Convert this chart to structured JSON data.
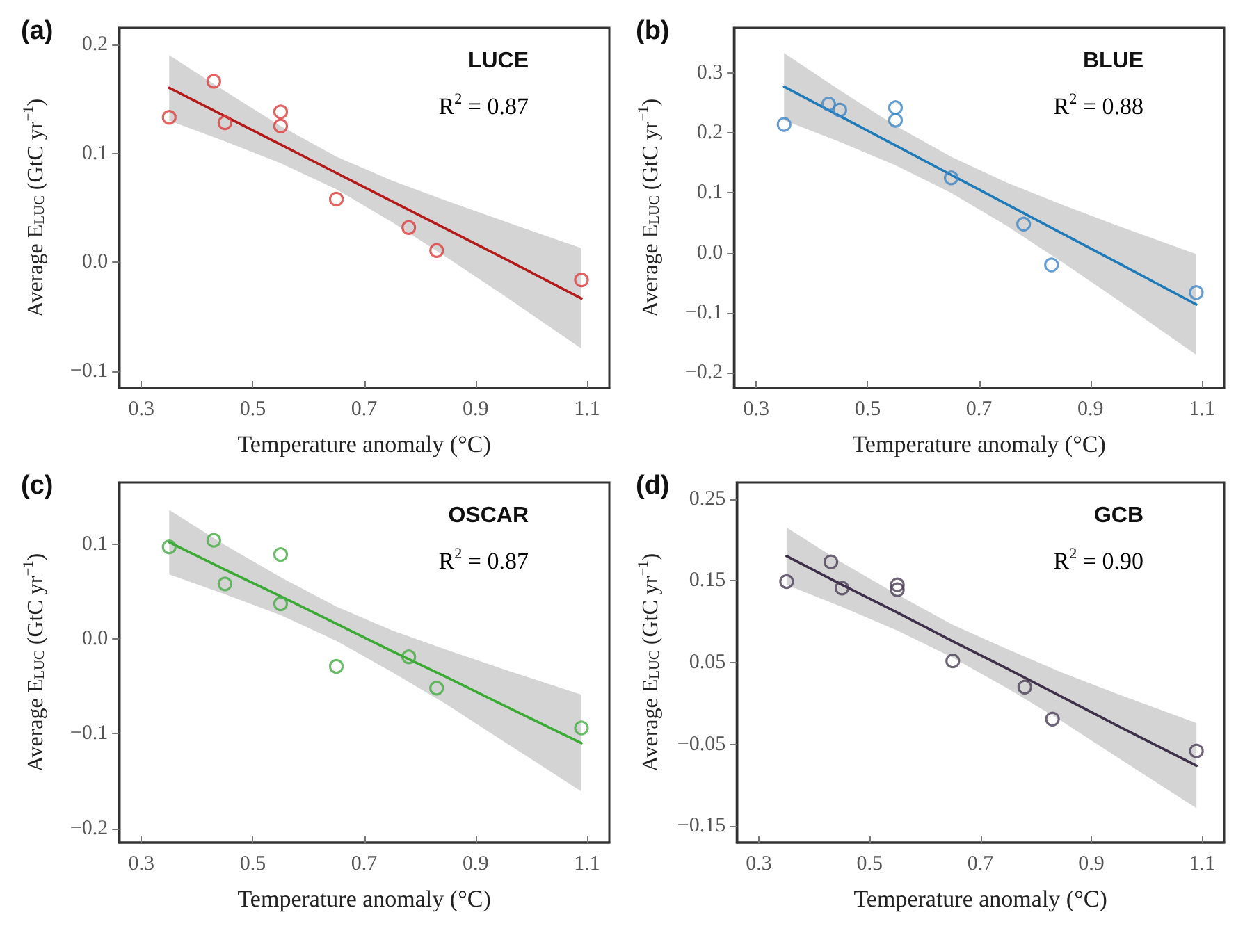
{
  "chart_data": [
    {
      "type": "scatter",
      "title": "(a)",
      "xlabel": "Temperature anomaly (°C)",
      "ylabel": "Average E$_{LUC}$ (GtC yr$^{−1}$)",
      "annotations": [
        "LUCE",
        "R$^{2}$ = 0.87"
      ],
      "xlim": [
        0.26,
        1.14
      ],
      "xticks": [
        0.3,
        0.5,
        0.7,
        0.9,
        1.1
      ],
      "ylim": [
        -0.115,
        0.215
      ],
      "yticks": [
        {
          "value": -0.1,
          "label": "−0.1"
        },
        {
          "value": 0,
          "label": "0.0"
        },
        0.1,
        0.2
      ],
      "grid": false,
      "marker": "circle",
      "series": [
        {
          "color": "#e03a3a",
          "x": [
            0.35,
            0.43,
            0.45,
            0.55,
            0.55,
            0.65,
            0.78,
            0.83,
            1.09
          ],
          "values": [
            0.133,
            0.166,
            0.128,
            0.138,
            0.125,
            0.058,
            0.032,
            0.011,
            -0.016
          ]
        },
        {
          "type": "line",
          "color": "#b31b1b",
          "marker": "none",
          "x": [
            0.35,
            0.45,
            0.55,
            0.65,
            0.75,
            0.85,
            0.95,
            1.09
          ],
          "values": [
            0.16,
            0.134,
            0.108,
            0.082,
            0.056,
            0.03,
            0.004,
            -0.033
          ],
          "lower": [
            0.13,
            0.111,
            0.091,
            0.067,
            0.037,
            0.004,
            -0.03,
            -0.079
          ],
          "upper": [
            0.19,
            0.157,
            0.125,
            0.097,
            0.075,
            0.056,
            0.038,
            0.013
          ]
        }
      ]
    },
    {
      "type": "scatter",
      "title": "(b)",
      "xlabel": "Temperature anomaly (°C)",
      "ylabel": "Average E$_{LUC}$ (GtC yr$^{−1}$)",
      "annotations": [
        "BLUE",
        "R$^{2}$ = 0.88"
      ],
      "xlim": [
        0.26,
        1.14
      ],
      "xticks": [
        0.3,
        0.5,
        0.7,
        0.9,
        1.1
      ],
      "ylim": [
        -0.225,
        0.375
      ],
      "yticks": [
        {
          "value": -0.2,
          "label": "−0.2"
        },
        {
          "value": -0.1,
          "label": "−0.1"
        },
        {
          "value": 0,
          "label": "0.0"
        },
        0.1,
        0.2,
        0.3
      ],
      "grid": false,
      "marker": "circle",
      "series": [
        {
          "color": "#3d84c4",
          "x": [
            0.35,
            0.43,
            0.45,
            0.55,
            0.55,
            0.65,
            0.78,
            0.83,
            1.09
          ],
          "values": [
            0.214,
            0.248,
            0.238,
            0.242,
            0.221,
            0.125,
            0.048,
            -0.02,
            -0.066
          ]
        },
        {
          "type": "line",
          "color": "#1f7ab8",
          "marker": "none",
          "x": [
            0.35,
            0.45,
            0.55,
            0.65,
            0.75,
            0.85,
            0.95,
            1.09
          ],
          "values": [
            0.277,
            0.228,
            0.179,
            0.13,
            0.081,
            0.032,
            -0.017,
            -0.086
          ],
          "lower": [
            0.221,
            0.185,
            0.146,
            0.1,
            0.045,
            -0.016,
            -0.079,
            -0.17
          ],
          "upper": [
            0.333,
            0.271,
            0.212,
            0.16,
            0.117,
            0.08,
            0.045,
            -0.002
          ]
        }
      ]
    },
    {
      "type": "scatter",
      "title": "(c)",
      "xlabel": "Temperature anomaly (°C)",
      "ylabel": "Average E$_{LUC}$ (GtC yr$^{−1}$)",
      "annotations": [
        "OSCAR",
        "R$^{2}$ = 0.87"
      ],
      "xlim": [
        0.26,
        1.14
      ],
      "xticks": [
        0.3,
        0.5,
        0.7,
        0.9,
        1.1
      ],
      "ylim": [
        -0.215,
        0.165
      ],
      "yticks": [
        {
          "value": -0.2,
          "label": "−0.2"
        },
        {
          "value": -0.1,
          "label": "−0.1"
        },
        {
          "value": 0,
          "label": "0.0"
        },
        0.1
      ],
      "grid": false,
      "marker": "circle",
      "series": [
        {
          "color": "#43ad43",
          "x": [
            0.35,
            0.43,
            0.45,
            0.55,
            0.55,
            0.65,
            0.78,
            0.83,
            1.09
          ],
          "values": [
            0.097,
            0.104,
            0.058,
            0.089,
            0.037,
            -0.029,
            -0.019,
            -0.052,
            -0.094
          ]
        },
        {
          "type": "line",
          "color": "#3aaa35",
          "marker": "none",
          "x": [
            0.35,
            0.45,
            0.55,
            0.65,
            0.75,
            0.85,
            0.95,
            1.09
          ],
          "values": [
            0.102,
            0.073,
            0.045,
            0.016,
            -0.013,
            -0.041,
            -0.07,
            -0.11
          ],
          "lower": [
            0.068,
            0.047,
            0.025,
            -0.002,
            -0.035,
            -0.07,
            -0.108,
            -0.161
          ],
          "upper": [
            0.136,
            0.099,
            0.065,
            0.034,
            0.009,
            -0.012,
            -0.032,
            -0.059
          ]
        }
      ]
    },
    {
      "type": "scatter",
      "title": "(d)",
      "xlabel": "Temperature anomaly (°C)",
      "ylabel": "Average E$_{LUC}$ (GtC yr$^{−1}$)",
      "annotations": [
        "GCB",
        "R$^{2}$ = 0.90"
      ],
      "xlim": [
        0.26,
        1.14
      ],
      "xticks": [
        0.3,
        0.5,
        0.7,
        0.9,
        1.1
      ],
      "ylim": [
        -0.17,
        0.27
      ],
      "yticks": [
        {
          "value": -0.15,
          "label": "−0.15"
        },
        {
          "value": -0.05,
          "label": "−0.05"
        },
        0.05,
        0.15,
        0.25
      ],
      "grid": false,
      "marker": "circle",
      "series": [
        {
          "color": "#4a3d55",
          "x": [
            0.35,
            0.43,
            0.45,
            0.55,
            0.55,
            0.65,
            0.78,
            0.83,
            1.09
          ],
          "values": [
            0.149,
            0.173,
            0.141,
            0.145,
            0.139,
            0.052,
            0.02,
            -0.019,
            -0.058
          ]
        },
        {
          "type": "line",
          "color": "#3d3048",
          "marker": "none",
          "x": [
            0.35,
            0.45,
            0.55,
            0.65,
            0.75,
            0.85,
            0.95,
            1.09
          ],
          "values": [
            0.18,
            0.145,
            0.111,
            0.076,
            0.042,
            0.007,
            -0.028,
            -0.076
          ],
          "lower": [
            0.145,
            0.118,
            0.089,
            0.056,
            0.018,
            -0.023,
            -0.067,
            -0.128
          ],
          "upper": [
            0.215,
            0.172,
            0.133,
            0.096,
            0.066,
            0.037,
            0.011,
            -0.024
          ]
        }
      ]
    }
  ]
}
